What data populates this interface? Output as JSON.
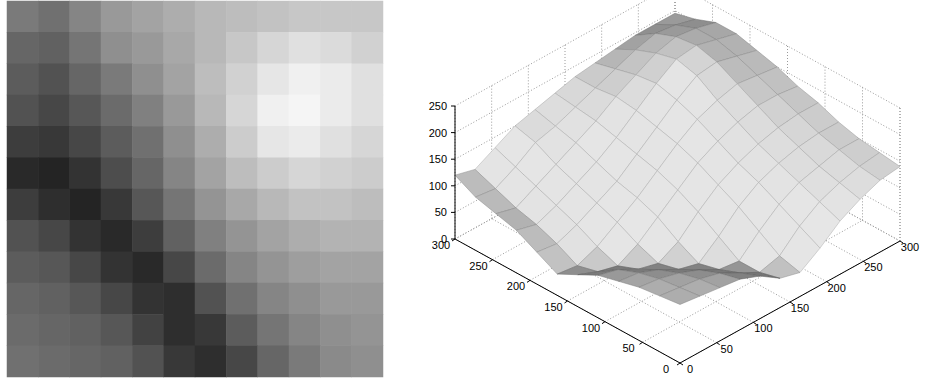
{
  "chart_data": [
    {
      "type": "heatmap",
      "tick_labels": false,
      "zlim": [
        0,
        250
      ],
      "cells": [
        [
          120,
          110,
          130,
          150,
          160,
          170,
          180,
          185,
          190,
          195,
          195,
          195
        ],
        [
          100,
          95,
          115,
          140,
          150,
          165,
          180,
          195,
          210,
          220,
          215,
          205
        ],
        [
          90,
          80,
          100,
          120,
          140,
          160,
          185,
          205,
          225,
          235,
          230,
          220
        ],
        [
          80,
          70,
          85,
          105,
          125,
          150,
          180,
          210,
          235,
          240,
          230,
          220
        ],
        [
          60,
          55,
          70,
          90,
          110,
          140,
          170,
          200,
          225,
          230,
          220,
          210
        ],
        [
          40,
          35,
          50,
          75,
          100,
          130,
          160,
          185,
          200,
          210,
          205,
          200
        ],
        [
          60,
          45,
          35,
          55,
          85,
          115,
          145,
          165,
          180,
          190,
          190,
          185
        ],
        [
          80,
          70,
          50,
          40,
          60,
          95,
          125,
          145,
          160,
          170,
          175,
          175
        ],
        [
          90,
          85,
          70,
          50,
          40,
          70,
          105,
          130,
          145,
          155,
          160,
          160
        ],
        [
          100,
          95,
          85,
          70,
          50,
          45,
          80,
          110,
          130,
          140,
          150,
          150
        ],
        [
          105,
          100,
          95,
          85,
          65,
          45,
          55,
          90,
          115,
          130,
          140,
          145
        ],
        [
          110,
          105,
          100,
          95,
          80,
          55,
          45,
          70,
          100,
          120,
          135,
          140
        ]
      ]
    },
    {
      "type": "surface",
      "grid": true,
      "xlim": [
        0,
        300
      ],
      "xticks": [
        0,
        50,
        100,
        150,
        200,
        250,
        300
      ],
      "ylim": [
        0,
        300
      ],
      "yticks": [
        0,
        50,
        100,
        150,
        200,
        250,
        300
      ],
      "zlim": [
        0,
        250
      ],
      "zticks": [
        0,
        50,
        100,
        150,
        200,
        250
      ],
      "cells": [
        [
          120,
          110,
          130,
          150,
          160,
          170,
          180,
          185,
          190,
          195,
          195,
          195
        ],
        [
          100,
          95,
          115,
          140,
          150,
          165,
          180,
          195,
          210,
          220,
          215,
          205
        ],
        [
          90,
          80,
          100,
          120,
          140,
          160,
          185,
          205,
          225,
          235,
          230,
          220
        ],
        [
          80,
          70,
          85,
          105,
          125,
          150,
          180,
          210,
          235,
          240,
          230,
          220
        ],
        [
          60,
          55,
          70,
          90,
          110,
          140,
          170,
          200,
          225,
          230,
          220,
          210
        ],
        [
          40,
          35,
          50,
          75,
          100,
          130,
          160,
          185,
          200,
          210,
          205,
          200
        ],
        [
          60,
          45,
          35,
          55,
          85,
          115,
          145,
          165,
          180,
          190,
          190,
          185
        ],
        [
          80,
          70,
          50,
          40,
          60,
          95,
          125,
          145,
          160,
          170,
          175,
          175
        ],
        [
          90,
          85,
          70,
          50,
          40,
          70,
          105,
          130,
          145,
          155,
          160,
          160
        ],
        [
          100,
          95,
          85,
          70,
          50,
          45,
          80,
          110,
          130,
          140,
          150,
          150
        ],
        [
          105,
          100,
          95,
          85,
          65,
          45,
          55,
          90,
          115,
          130,
          140,
          145
        ],
        [
          110,
          105,
          100,
          95,
          80,
          55,
          45,
          70,
          100,
          120,
          135,
          140
        ]
      ]
    }
  ]
}
